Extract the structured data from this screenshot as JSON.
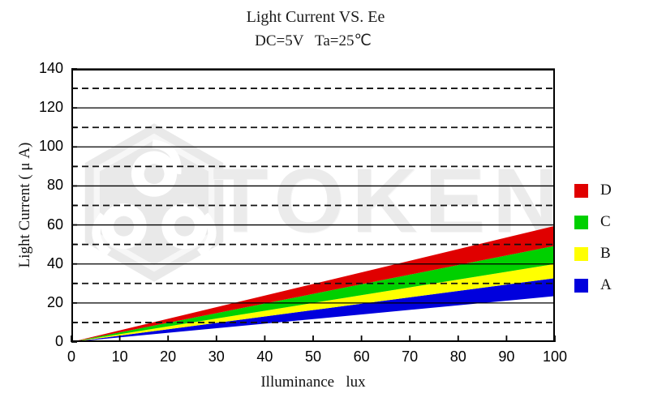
{
  "watermark": {
    "text": "TOKEN",
    "color": "#ebebeb"
  },
  "chart_data": {
    "type": "area",
    "title": "Light Current VS. Ee",
    "subtitle": "DC=5V   Ta=25℃",
    "xlabel": "Illuminance   lux",
    "ylabel": "Light Current ( μ A)",
    "xlim": [
      0,
      100
    ],
    "ylim": [
      0,
      140
    ],
    "x_ticks": [
      0,
      10,
      20,
      30,
      40,
      50,
      60,
      70,
      80,
      90,
      100
    ],
    "y_tick_labels": [
      0,
      20,
      40,
      60,
      80,
      100,
      120,
      140
    ],
    "y_minor_ticks": [
      10,
      30,
      50,
      70,
      90,
      110,
      130
    ],
    "grid": {
      "solid_y": [
        20,
        40,
        60,
        80,
        100,
        120,
        140
      ],
      "dashed_y": [
        10,
        30,
        50,
        70,
        90,
        110,
        130
      ]
    },
    "legend_position": "right-outside",
    "legend": [
      {
        "label": "D",
        "color": "#e00000"
      },
      {
        "label": "C",
        "color": "#00d000"
      },
      {
        "label": "B",
        "color": "#ffff00"
      },
      {
        "label": "A",
        "color": "#0000dd"
      }
    ],
    "x": [
      0,
      100
    ],
    "series": [
      {
        "name": "A",
        "color": "#0000dd",
        "lower": [
          0,
          23.5
        ],
        "upper": [
          0,
          32.7
        ]
      },
      {
        "name": "B",
        "color": "#ffff00",
        "lower": [
          0,
          32.7
        ],
        "upper": [
          0,
          40.0
        ]
      },
      {
        "name": "C",
        "color": "#00d000",
        "lower": [
          0,
          40.0
        ],
        "upper": [
          0,
          49.3
        ]
      },
      {
        "name": "D",
        "color": "#e00000",
        "lower": [
          0,
          49.3
        ],
        "upper": [
          0,
          59.5
        ]
      }
    ],
    "note": "Bands are linear wedges from the origin (0,0); values above are the band lower/upper Light Current in uA at Illuminance = 100 lux."
  }
}
